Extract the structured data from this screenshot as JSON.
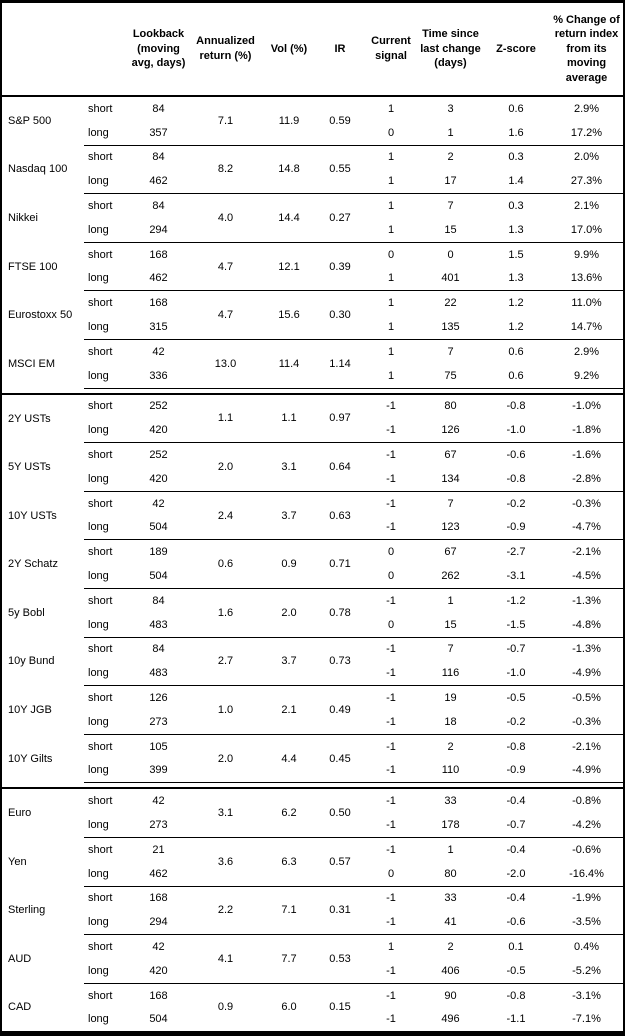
{
  "table": {
    "columns": {
      "asset": "",
      "horizon": "",
      "lookback": "Lookback (moving avg, days)",
      "annualized": "Annualized return (%)",
      "vol": "Vol (%)",
      "ir": "IR",
      "signal": "Current signal",
      "days": "Time since last change (days)",
      "zscore": "Z-score",
      "pct_change": "% Change of return index from its moving average"
    },
    "horizon_labels": {
      "short": "short",
      "long": "long"
    },
    "sections": [
      {
        "groups": [
          {
            "asset": "S&P 500",
            "annualized": "7.1",
            "vol": "11.9",
            "ir": "0.59",
            "short": {
              "lookback": "84",
              "signal": "1",
              "days": "3",
              "zscore": "0.6",
              "pct": "2.9%"
            },
            "long": {
              "lookback": "357",
              "signal": "0",
              "days": "1",
              "zscore": "1.6",
              "pct": "17.2%"
            }
          },
          {
            "asset": "Nasdaq 100",
            "annualized": "8.2",
            "vol": "14.8",
            "ir": "0.55",
            "short": {
              "lookback": "84",
              "signal": "1",
              "days": "2",
              "zscore": "0.3",
              "pct": "2.0%"
            },
            "long": {
              "lookback": "462",
              "signal": "1",
              "days": "17",
              "zscore": "1.4",
              "pct": "27.3%"
            }
          },
          {
            "asset": "Nikkei",
            "annualized": "4.0",
            "vol": "14.4",
            "ir": "0.27",
            "short": {
              "lookback": "84",
              "signal": "1",
              "days": "7",
              "zscore": "0.3",
              "pct": "2.1%"
            },
            "long": {
              "lookback": "294",
              "signal": "1",
              "days": "15",
              "zscore": "1.3",
              "pct": "17.0%"
            }
          },
          {
            "asset": "FTSE 100",
            "annualized": "4.7",
            "vol": "12.1",
            "ir": "0.39",
            "short": {
              "lookback": "168",
              "signal": "0",
              "days": "0",
              "zscore": "1.5",
              "pct": "9.9%"
            },
            "long": {
              "lookback": "462",
              "signal": "1",
              "days": "401",
              "zscore": "1.3",
              "pct": "13.6%"
            }
          },
          {
            "asset": "Eurostoxx 50",
            "annualized": "4.7",
            "vol": "15.6",
            "ir": "0.30",
            "short": {
              "lookback": "168",
              "signal": "1",
              "days": "22",
              "zscore": "1.2",
              "pct": "11.0%"
            },
            "long": {
              "lookback": "315",
              "signal": "1",
              "days": "135",
              "zscore": "1.2",
              "pct": "14.7%"
            }
          },
          {
            "asset": "MSCI EM",
            "annualized": "13.0",
            "vol": "11.4",
            "ir": "1.14",
            "short": {
              "lookback": "42",
              "signal": "1",
              "days": "7",
              "zscore": "0.6",
              "pct": "2.9%"
            },
            "long": {
              "lookback": "336",
              "signal": "1",
              "days": "75",
              "zscore": "0.6",
              "pct": "9.2%"
            }
          }
        ]
      },
      {
        "groups": [
          {
            "asset": "2Y USTs",
            "annualized": "1.1",
            "vol": "1.1",
            "ir": "0.97",
            "short": {
              "lookback": "252",
              "signal": "-1",
              "days": "80",
              "zscore": "-0.8",
              "pct": "-1.0%"
            },
            "long": {
              "lookback": "420",
              "signal": "-1",
              "days": "126",
              "zscore": "-1.0",
              "pct": "-1.8%"
            }
          },
          {
            "asset": "5Y USTs",
            "annualized": "2.0",
            "vol": "3.1",
            "ir": "0.64",
            "short": {
              "lookback": "252",
              "signal": "-1",
              "days": "67",
              "zscore": "-0.6",
              "pct": "-1.6%"
            },
            "long": {
              "lookback": "420",
              "signal": "-1",
              "days": "134",
              "zscore": "-0.8",
              "pct": "-2.8%"
            }
          },
          {
            "asset": "10Y USTs",
            "annualized": "2.4",
            "vol": "3.7",
            "ir": "0.63",
            "short": {
              "lookback": "42",
              "signal": "-1",
              "days": "7",
              "zscore": "-0.2",
              "pct": "-0.3%"
            },
            "long": {
              "lookback": "504",
              "signal": "-1",
              "days": "123",
              "zscore": "-0.9",
              "pct": "-4.7%"
            }
          },
          {
            "asset": "2Y Schatz",
            "annualized": "0.6",
            "vol": "0.9",
            "ir": "0.71",
            "short": {
              "lookback": "189",
              "signal": "0",
              "days": "67",
              "zscore": "-2.7",
              "pct": "-2.1%"
            },
            "long": {
              "lookback": "504",
              "signal": "0",
              "days": "262",
              "zscore": "-3.1",
              "pct": "-4.5%"
            }
          },
          {
            "asset": "5y Bobl",
            "annualized": "1.6",
            "vol": "2.0",
            "ir": "0.78",
            "short": {
              "lookback": "84",
              "signal": "-1",
              "days": "1",
              "zscore": "-1.2",
              "pct": "-1.3%"
            },
            "long": {
              "lookback": "483",
              "signal": "0",
              "days": "15",
              "zscore": "-1.5",
              "pct": "-4.8%"
            }
          },
          {
            "asset": "10y Bund",
            "annualized": "2.7",
            "vol": "3.7",
            "ir": "0.73",
            "short": {
              "lookback": "84",
              "signal": "-1",
              "days": "7",
              "zscore": "-0.7",
              "pct": "-1.3%"
            },
            "long": {
              "lookback": "483",
              "signal": "-1",
              "days": "116",
              "zscore": "-1.0",
              "pct": "-4.9%"
            }
          },
          {
            "asset": "10Y JGB",
            "annualized": "1.0",
            "vol": "2.1",
            "ir": "0.49",
            "short": {
              "lookback": "126",
              "signal": "-1",
              "days": "19",
              "zscore": "-0.5",
              "pct": "-0.5%"
            },
            "long": {
              "lookback": "273",
              "signal": "-1",
              "days": "18",
              "zscore": "-0.2",
              "pct": "-0.3%"
            }
          },
          {
            "asset": "10Y Gilts",
            "annualized": "2.0",
            "vol": "4.4",
            "ir": "0.45",
            "short": {
              "lookback": "105",
              "signal": "-1",
              "days": "2",
              "zscore": "-0.8",
              "pct": "-2.1%"
            },
            "long": {
              "lookback": "399",
              "signal": "-1",
              "days": "110",
              "zscore": "-0.9",
              "pct": "-4.9%"
            }
          }
        ]
      },
      {
        "groups": [
          {
            "asset": "Euro",
            "annualized": "3.1",
            "vol": "6.2",
            "ir": "0.50",
            "short": {
              "lookback": "42",
              "signal": "-1",
              "days": "33",
              "zscore": "-0.4",
              "pct": "-0.8%"
            },
            "long": {
              "lookback": "273",
              "signal": "-1",
              "days": "178",
              "zscore": "-0.7",
              "pct": "-4.2%"
            }
          },
          {
            "asset": "Yen",
            "annualized": "3.6",
            "vol": "6.3",
            "ir": "0.57",
            "short": {
              "lookback": "21",
              "signal": "-1",
              "days": "1",
              "zscore": "-0.4",
              "pct": "-0.6%"
            },
            "long": {
              "lookback": "462",
              "signal": "0",
              "days": "80",
              "zscore": "-2.0",
              "pct": "-16.4%"
            }
          },
          {
            "asset": "Sterling",
            "annualized": "2.2",
            "vol": "7.1",
            "ir": "0.31",
            "short": {
              "lookback": "168",
              "signal": "-1",
              "days": "33",
              "zscore": "-0.4",
              "pct": "-1.9%"
            },
            "long": {
              "lookback": "294",
              "signal": "-1",
              "days": "41",
              "zscore": "-0.6",
              "pct": "-3.5%"
            }
          },
          {
            "asset": "AUD",
            "annualized": "4.1",
            "vol": "7.7",
            "ir": "0.53",
            "short": {
              "lookback": "42",
              "signal": "1",
              "days": "2",
              "zscore": "0.1",
              "pct": "0.4%"
            },
            "long": {
              "lookback": "420",
              "signal": "-1",
              "days": "406",
              "zscore": "-0.5",
              "pct": "-5.2%"
            }
          },
          {
            "asset": "CAD",
            "annualized": "0.9",
            "vol": "6.0",
            "ir": "0.15",
            "short": {
              "lookback": "168",
              "signal": "-1",
              "days": "90",
              "zscore": "-0.8",
              "pct": "-3.1%"
            },
            "long": {
              "lookback": "504",
              "signal": "-1",
              "days": "496",
              "zscore": "-1.1",
              "pct": "-7.1%"
            }
          }
        ]
      }
    ]
  }
}
